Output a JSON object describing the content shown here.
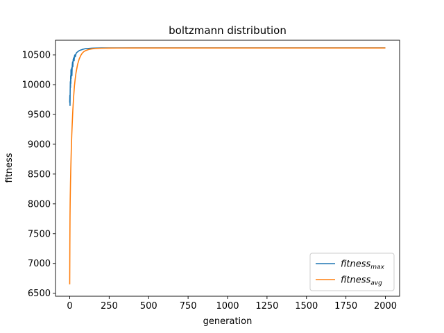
{
  "chart_data": {
    "type": "line",
    "title": "boltzmann distribution",
    "xlabel": "generation",
    "ylabel": "fitness",
    "xlim": [
      -90,
      2090
    ],
    "ylim": [
      6450,
      10745
    ],
    "xticks": [
      0,
      250,
      500,
      750,
      1000,
      1250,
      1500,
      1750,
      2000
    ],
    "yticks": [
      6500,
      7000,
      7500,
      8000,
      8500,
      9000,
      9500,
      10000,
      10500
    ],
    "grid": false,
    "legend_position": "lower-right",
    "series": [
      {
        "name": "fitness",
        "name_subscript": "max",
        "color": "#1f77b4",
        "x": [
          0,
          1,
          2,
          3,
          4,
          5,
          6,
          7,
          8,
          9,
          10,
          12,
          14,
          16,
          18,
          20,
          22,
          25,
          28,
          30,
          33,
          36,
          40,
          45,
          50,
          55,
          60,
          70,
          80,
          90,
          100,
          120,
          140,
          160,
          180,
          200,
          250,
          300,
          400,
          500,
          750,
          1000,
          1500,
          2000
        ],
        "y": [
          9700,
          9820,
          9650,
          9900,
          10050,
          9950,
          10150,
          10020,
          10250,
          10100,
          10200,
          10280,
          10150,
          10320,
          10380,
          10300,
          10420,
          10450,
          10400,
          10480,
          10500,
          10470,
          10520,
          10540,
          10550,
          10560,
          10570,
          10580,
          10590,
          10598,
          10603,
          10608,
          10612,
          10614,
          10615,
          10616,
          10616,
          10617,
          10617,
          10617,
          10617,
          10617,
          10617,
          10617
        ]
      },
      {
        "name": "fitness",
        "name_subscript": "avg",
        "color": "#ff7f0e",
        "x": [
          0,
          1,
          2,
          3,
          5,
          7,
          10,
          13,
          16,
          20,
          25,
          30,
          35,
          40,
          50,
          60,
          70,
          80,
          90,
          100,
          120,
          140,
          160,
          180,
          200,
          250,
          300,
          400,
          500,
          750,
          1000,
          1500,
          2000
        ],
        "y": [
          6650,
          7300,
          7800,
          8050,
          8350,
          8600,
          8900,
          9150,
          9350,
          9580,
          9800,
          9980,
          10100,
          10200,
          10340,
          10430,
          10490,
          10530,
          10555,
          10570,
          10590,
          10600,
          10606,
          10609,
          10611,
          10613,
          10614,
          10615,
          10615,
          10615,
          10615,
          10615,
          10615
        ]
      }
    ]
  }
}
